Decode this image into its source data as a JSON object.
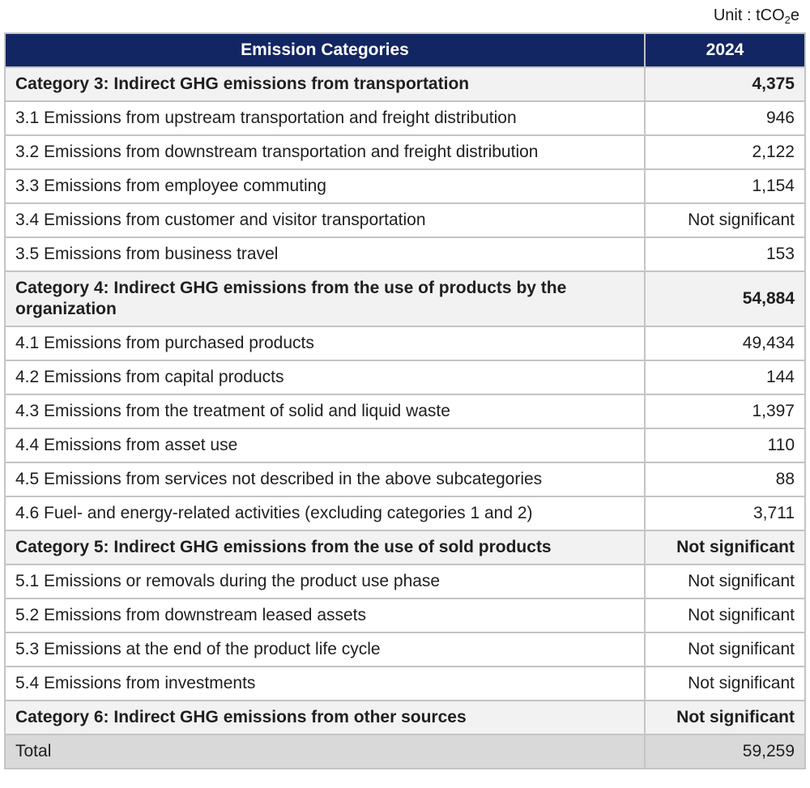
{
  "unit": {
    "prefix": "Unit : tCO",
    "subscript": "2",
    "suffix": "e"
  },
  "colors": {
    "header_bg": "#122663",
    "header_text": "#ffffff",
    "category_row_bg": "#f2f2f2",
    "total_row_bg": "#d9d9d9",
    "row_bg": "#ffffff",
    "border": "#c4c4c4",
    "text": "#1f1f1f"
  },
  "table": {
    "header": {
      "category": "Emission Categories",
      "year": "2024"
    },
    "rows": [
      {
        "type": "category",
        "label": "Category 3: Indirect GHG emissions from transportation",
        "value": "4,375"
      },
      {
        "type": "sub",
        "label": "3.1 Emissions from upstream transportation and freight distribution",
        "value": "946"
      },
      {
        "type": "sub",
        "label": "3.2 Emissions from downstream transportation and freight distribution",
        "value": "2,122"
      },
      {
        "type": "sub",
        "label": "3.3 Emissions from employee commuting",
        "value": "1,154"
      },
      {
        "type": "sub",
        "label": "3.4 Emissions from customer and visitor transportation",
        "value": "Not significant"
      },
      {
        "type": "sub",
        "label": "3.5 Emissions from business travel",
        "value": "153"
      },
      {
        "type": "category",
        "label": "Category 4: Indirect GHG emissions from the use of products by the organization",
        "value": "54,884"
      },
      {
        "type": "sub",
        "label": "4.1 Emissions from purchased products",
        "value": "49,434"
      },
      {
        "type": "sub",
        "label": "4.2 Emissions from capital products",
        "value": "144"
      },
      {
        "type": "sub",
        "label": "4.3 Emissions from the treatment of solid and liquid waste",
        "value": "1,397"
      },
      {
        "type": "sub",
        "label": "4.4 Emissions from asset use",
        "value": "110"
      },
      {
        "type": "sub",
        "label": "4.5 Emissions from services not described in the above subcategories",
        "value": "88"
      },
      {
        "type": "sub",
        "label": "4.6 Fuel- and energy-related activities (excluding categories 1 and 2)",
        "value": "3,711"
      },
      {
        "type": "category",
        "label": "Category 5: Indirect GHG emissions from the use of sold products",
        "value": "Not significant"
      },
      {
        "type": "sub",
        "label": "5.1 Emissions or removals during the product use phase",
        "value": "Not significant"
      },
      {
        "type": "sub",
        "label": "5.2 Emissions from downstream leased assets",
        "value": "Not significant"
      },
      {
        "type": "sub",
        "label": "5.3 Emissions at the end of the product life cycle",
        "value": "Not significant"
      },
      {
        "type": "sub",
        "label": "5.4 Emissions from investments",
        "value": "Not significant"
      },
      {
        "type": "category",
        "label": "Category 6: Indirect GHG emissions from other sources",
        "value": "Not significant"
      },
      {
        "type": "total",
        "label": "Total",
        "value": "59,259"
      }
    ]
  }
}
